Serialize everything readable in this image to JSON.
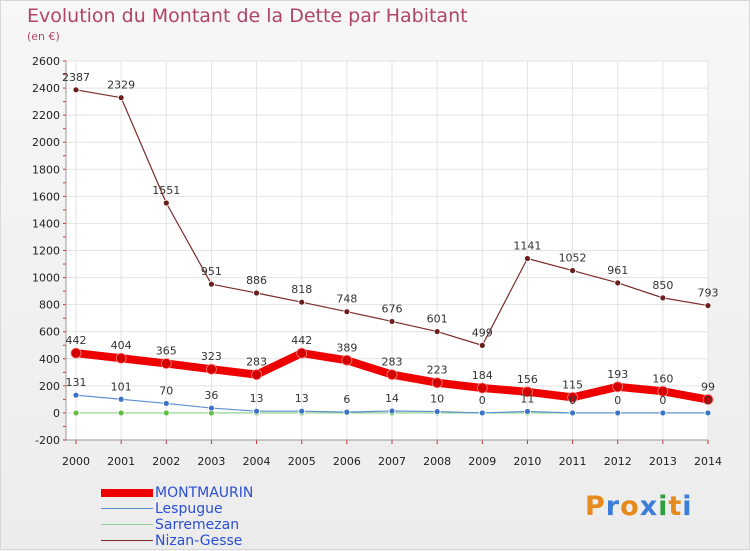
{
  "title": "Evolution du Montant de la Dette par Habitant",
  "subtitle": "(en €)",
  "logo": {
    "text": "Proxiti",
    "colors": [
      "#e58a1c",
      "#3b7dd8",
      "#e58a1c",
      "#3b7dd8",
      "#2e9e3e",
      "#e58a1c",
      "#3b7dd8"
    ]
  },
  "chart_data": {
    "type": "line",
    "categories": [
      "2000",
      "2001",
      "2002",
      "2003",
      "2004",
      "2005",
      "2006",
      "2007",
      "2008",
      "2009",
      "2010",
      "2011",
      "2012",
      "2013",
      "2014"
    ],
    "ylim": [
      -200,
      2600
    ],
    "yticks": [
      -200,
      0,
      200,
      400,
      600,
      800,
      1000,
      1200,
      1400,
      1600,
      1800,
      2000,
      2200,
      2400,
      2600
    ],
    "grid": true,
    "legend_position": "bottom-left",
    "series": [
      {
        "name": "Nizan-Gesse",
        "color": "#7a2b2b",
        "width": 1.2,
        "marker": "#6b1e1e",
        "values": [
          2387,
          2329,
          1551,
          951,
          886,
          818,
          748,
          676,
          601,
          499,
          1141,
          1052,
          961,
          850,
          793
        ],
        "labels": [
          "2387",
          "2329",
          "1551",
          "951",
          "886",
          "818",
          "748",
          "676",
          "601",
          "499",
          "1141",
          "1052",
          "961",
          "850",
          "793"
        ]
      },
      {
        "name": "Sarremezan",
        "color": "#8ed08e",
        "width": 1.2,
        "marker": "#5fbf3f",
        "values": [
          0,
          0,
          0,
          0,
          0,
          0,
          0,
          0,
          0,
          0,
          0,
          0,
          0,
          0,
          0
        ],
        "labels": []
      },
      {
        "name": "Lespugue",
        "color": "#5a8fd0",
        "width": 1.2,
        "marker": "#3d73c4",
        "values": [
          131,
          101,
          70,
          36,
          13,
          13,
          6,
          14,
          10,
          0,
          11,
          0,
          0,
          0,
          0
        ],
        "labels": [
          "131",
          "101",
          "70",
          "36",
          "13",
          "13",
          "6",
          "14",
          "10",
          "0",
          "11",
          "0",
          "0",
          "0",
          "0"
        ]
      },
      {
        "name": "MONTMAURIN",
        "color": "#ee0000",
        "width": 8,
        "marker": "#d40000",
        "values": [
          442,
          404,
          365,
          323,
          283,
          442,
          389,
          283,
          223,
          184,
          156,
          115,
          193,
          160,
          99
        ],
        "labels": [
          "442",
          "404",
          "365",
          "323",
          "283",
          "442",
          "389",
          "283",
          "223",
          "184",
          "156",
          "115",
          "193",
          "160",
          "99"
        ]
      }
    ],
    "legend": [
      {
        "name": "MONTMAURIN",
        "color": "#ee0000",
        "width": 8
      },
      {
        "name": "Lespugue",
        "color": "#5a8fd0",
        "width": 1.2
      },
      {
        "name": "Sarremezan",
        "color": "#8ed08e",
        "width": 1.2
      },
      {
        "name": "Nizan-Gesse",
        "color": "#7a2b2b",
        "width": 1.2
      }
    ]
  }
}
